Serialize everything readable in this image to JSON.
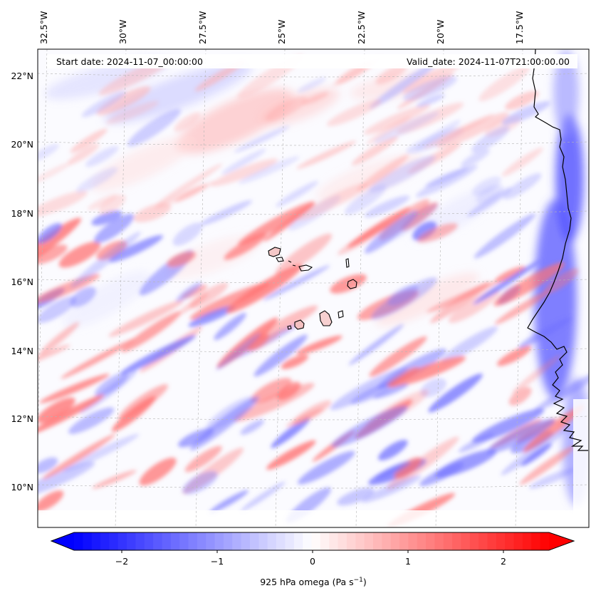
{
  "header": {
    "start_date": "Start date: 2024-11-07_00:00:00",
    "valid_date": "Valid_date: 2024-11-07T21:00:00.00"
  },
  "map": {
    "lon_labels": [
      "32.5°W",
      "30°W",
      "27.5°W",
      "25°W",
      "22.5°W",
      "20°W",
      "17.5°W"
    ],
    "lat_labels": [
      "22°N",
      "20°N",
      "18°N",
      "16°N",
      "14°N",
      "12°N",
      "10°N"
    ],
    "colors": {
      "negative": "#0000ff",
      "zero": "#ffffff",
      "positive": "#ff0000",
      "coast": "#000000",
      "grid": "#b0b0b0"
    }
  },
  "colorbar": {
    "ticks": [
      "−2",
      "−1",
      "0",
      "1",
      "2"
    ],
    "label_main": "925 hPa omega (Pa s",
    "label_sup": "−1",
    "label_close": ")",
    "range": [
      -2.7,
      2.7
    ]
  }
}
